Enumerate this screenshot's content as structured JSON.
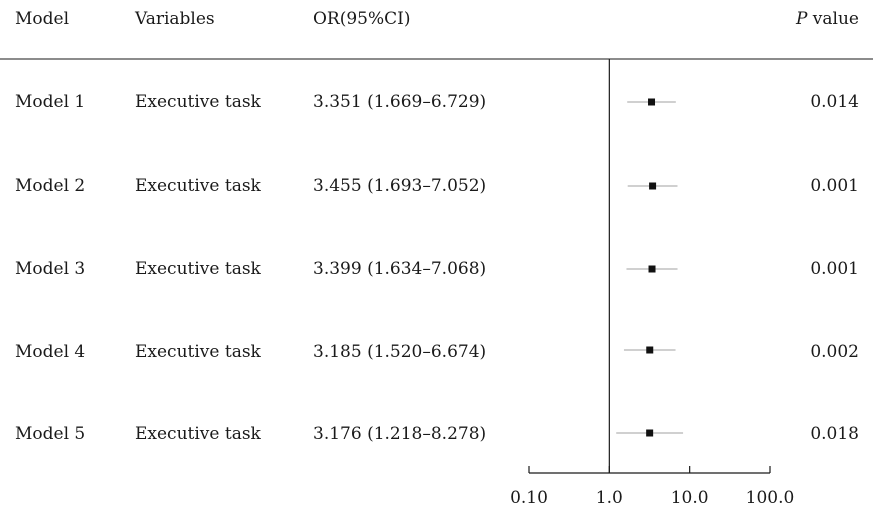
{
  "headers": {
    "model": "Model",
    "variables": "Variables",
    "or_ci": "OR(95%CI)",
    "p_value_italic": "P",
    "p_value_rest": " value"
  },
  "rows": [
    {
      "model": "Model 1",
      "variable": "Executive task",
      "or_text": "3.351 (1.669–6.729)",
      "p": "0.014"
    },
    {
      "model": "Model 2",
      "variable": "Executive task",
      "or_text": "3.455 (1.693–7.052)",
      "p": "0.001"
    },
    {
      "model": "Model 3",
      "variable": "Executive task",
      "or_text": "3.399 (1.634–7.068)",
      "p": "0.001"
    },
    {
      "model": "Model 4",
      "variable": "Executive task",
      "or_text": "3.185 (1.520–6.674)",
      "p": "0.002"
    },
    {
      "model": "Model 5",
      "variable": "Executive task",
      "or_text": "3.176 (1.218–8.278)",
      "p": "0.018"
    }
  ],
  "chart_data": {
    "type": "forest",
    "scale": "log",
    "reference_line": 1.0,
    "xlim": [
      0.1,
      100
    ],
    "ticks": [
      0.1,
      1.0,
      10.0,
      100.0
    ],
    "tick_labels": [
      "0.10",
      "1.0",
      "10.0",
      "100.0"
    ],
    "categories": [
      "Model 1",
      "Model 2",
      "Model 3",
      "Model 4",
      "Model 5"
    ],
    "estimates": [
      3.351,
      3.455,
      3.399,
      3.185,
      3.176
    ],
    "ci_low": [
      1.669,
      1.693,
      1.634,
      1.52,
      1.218
    ],
    "ci_high": [
      6.729,
      7.052,
      7.068,
      6.674,
      8.278
    ]
  }
}
